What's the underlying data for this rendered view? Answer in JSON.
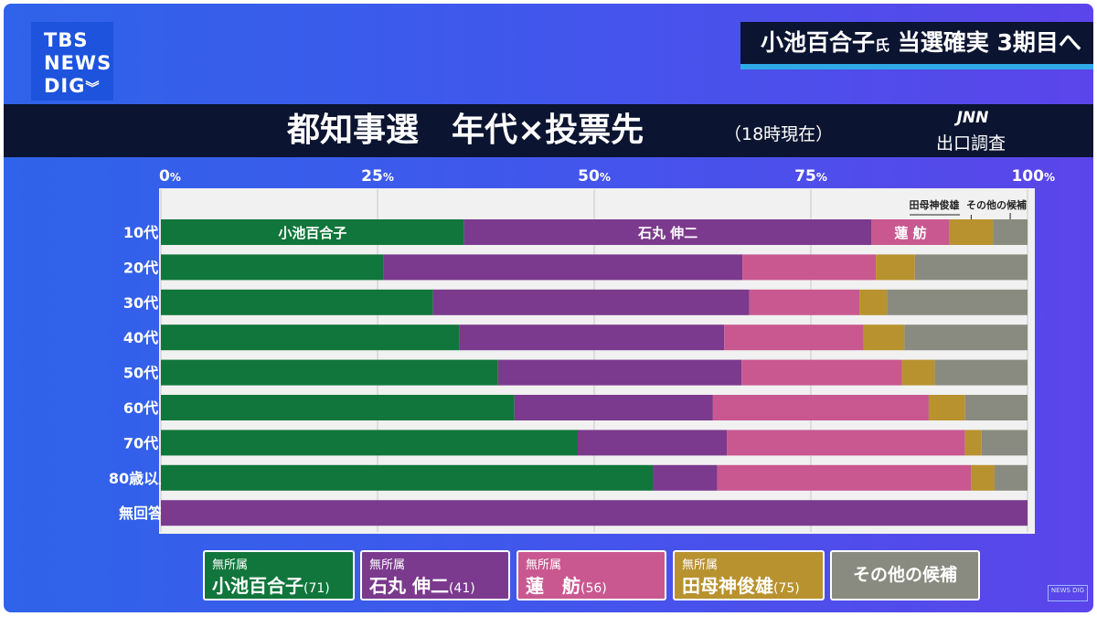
{
  "logo": {
    "line1": "TBS",
    "line2": "NEWS",
    "line3": "DIG"
  },
  "headline": {
    "name": "小池百合子",
    "honorific": "氏",
    "rest": "当選確実 3期目へ"
  },
  "title": "都知事選　年代×投票先",
  "subtitle": "（18時現在）",
  "source": {
    "brand": "JNN",
    "label": "出口調査"
  },
  "watermark": "NEWS DIG",
  "colors": {
    "koike": "#11763b",
    "ishimaru": "#7b3a8d",
    "renho": "#c95890",
    "tamogami": "#b8922f",
    "other": "#8a8b80"
  },
  "legend": [
    {
      "party": "無所属",
      "name": "小池百合子",
      "age": "(71)"
    },
    {
      "party": "無所属",
      "name": "石丸 伸二",
      "age": "(41)"
    },
    {
      "party": "無所属",
      "name": "蓮　舫",
      "age": "(56)"
    },
    {
      "party": "無所属",
      "name": "田母神俊雄",
      "age": "(75)"
    },
    {
      "party": "",
      "name": "その他の候補",
      "age": ""
    }
  ],
  "chart_data": {
    "type": "bar",
    "orientation": "horizontal",
    "stacked": true,
    "title": "都知事選　年代×投票先",
    "xlim": [
      0,
      100
    ],
    "x_ticks": [
      "0%",
      "25%",
      "50%",
      "75%",
      "100%"
    ],
    "categories": [
      "10代",
      "20代",
      "30代",
      "40代",
      "50代",
      "60代",
      "70代",
      "80歳以上",
      "無回答"
    ],
    "series": [
      {
        "name": "小池百合子",
        "values": [
          35,
          25.7,
          31.4,
          34.4,
          38.9,
          40.8,
          48.1,
          56.8,
          0
        ]
      },
      {
        "name": "石丸 伸二",
        "values": [
          47,
          41.4,
          36.5,
          30.6,
          28.1,
          22.9,
          17.2,
          7.4,
          100
        ]
      },
      {
        "name": "蓮　舫",
        "values": [
          9,
          15.4,
          12.7,
          16.1,
          18.5,
          24.9,
          27.5,
          29.3,
          0
        ]
      },
      {
        "name": "田母神俊雄",
        "values": [
          5,
          4.5,
          3.2,
          4.7,
          3.8,
          4.2,
          1.9,
          2.7,
          0
        ]
      },
      {
        "name": "その他の候補",
        "values": [
          4,
          13,
          16.2,
          14.2,
          10.7,
          7.2,
          5.3,
          3.8,
          0
        ]
      }
    ],
    "bar_labels": {
      "row": "10代",
      "labels": [
        "小池百合子",
        "石丸 伸二",
        "蓮 舫"
      ]
    },
    "annotations": [
      "田母神俊雄",
      "その他の候補"
    ],
    "grid": true,
    "legend_position": "bottom"
  }
}
